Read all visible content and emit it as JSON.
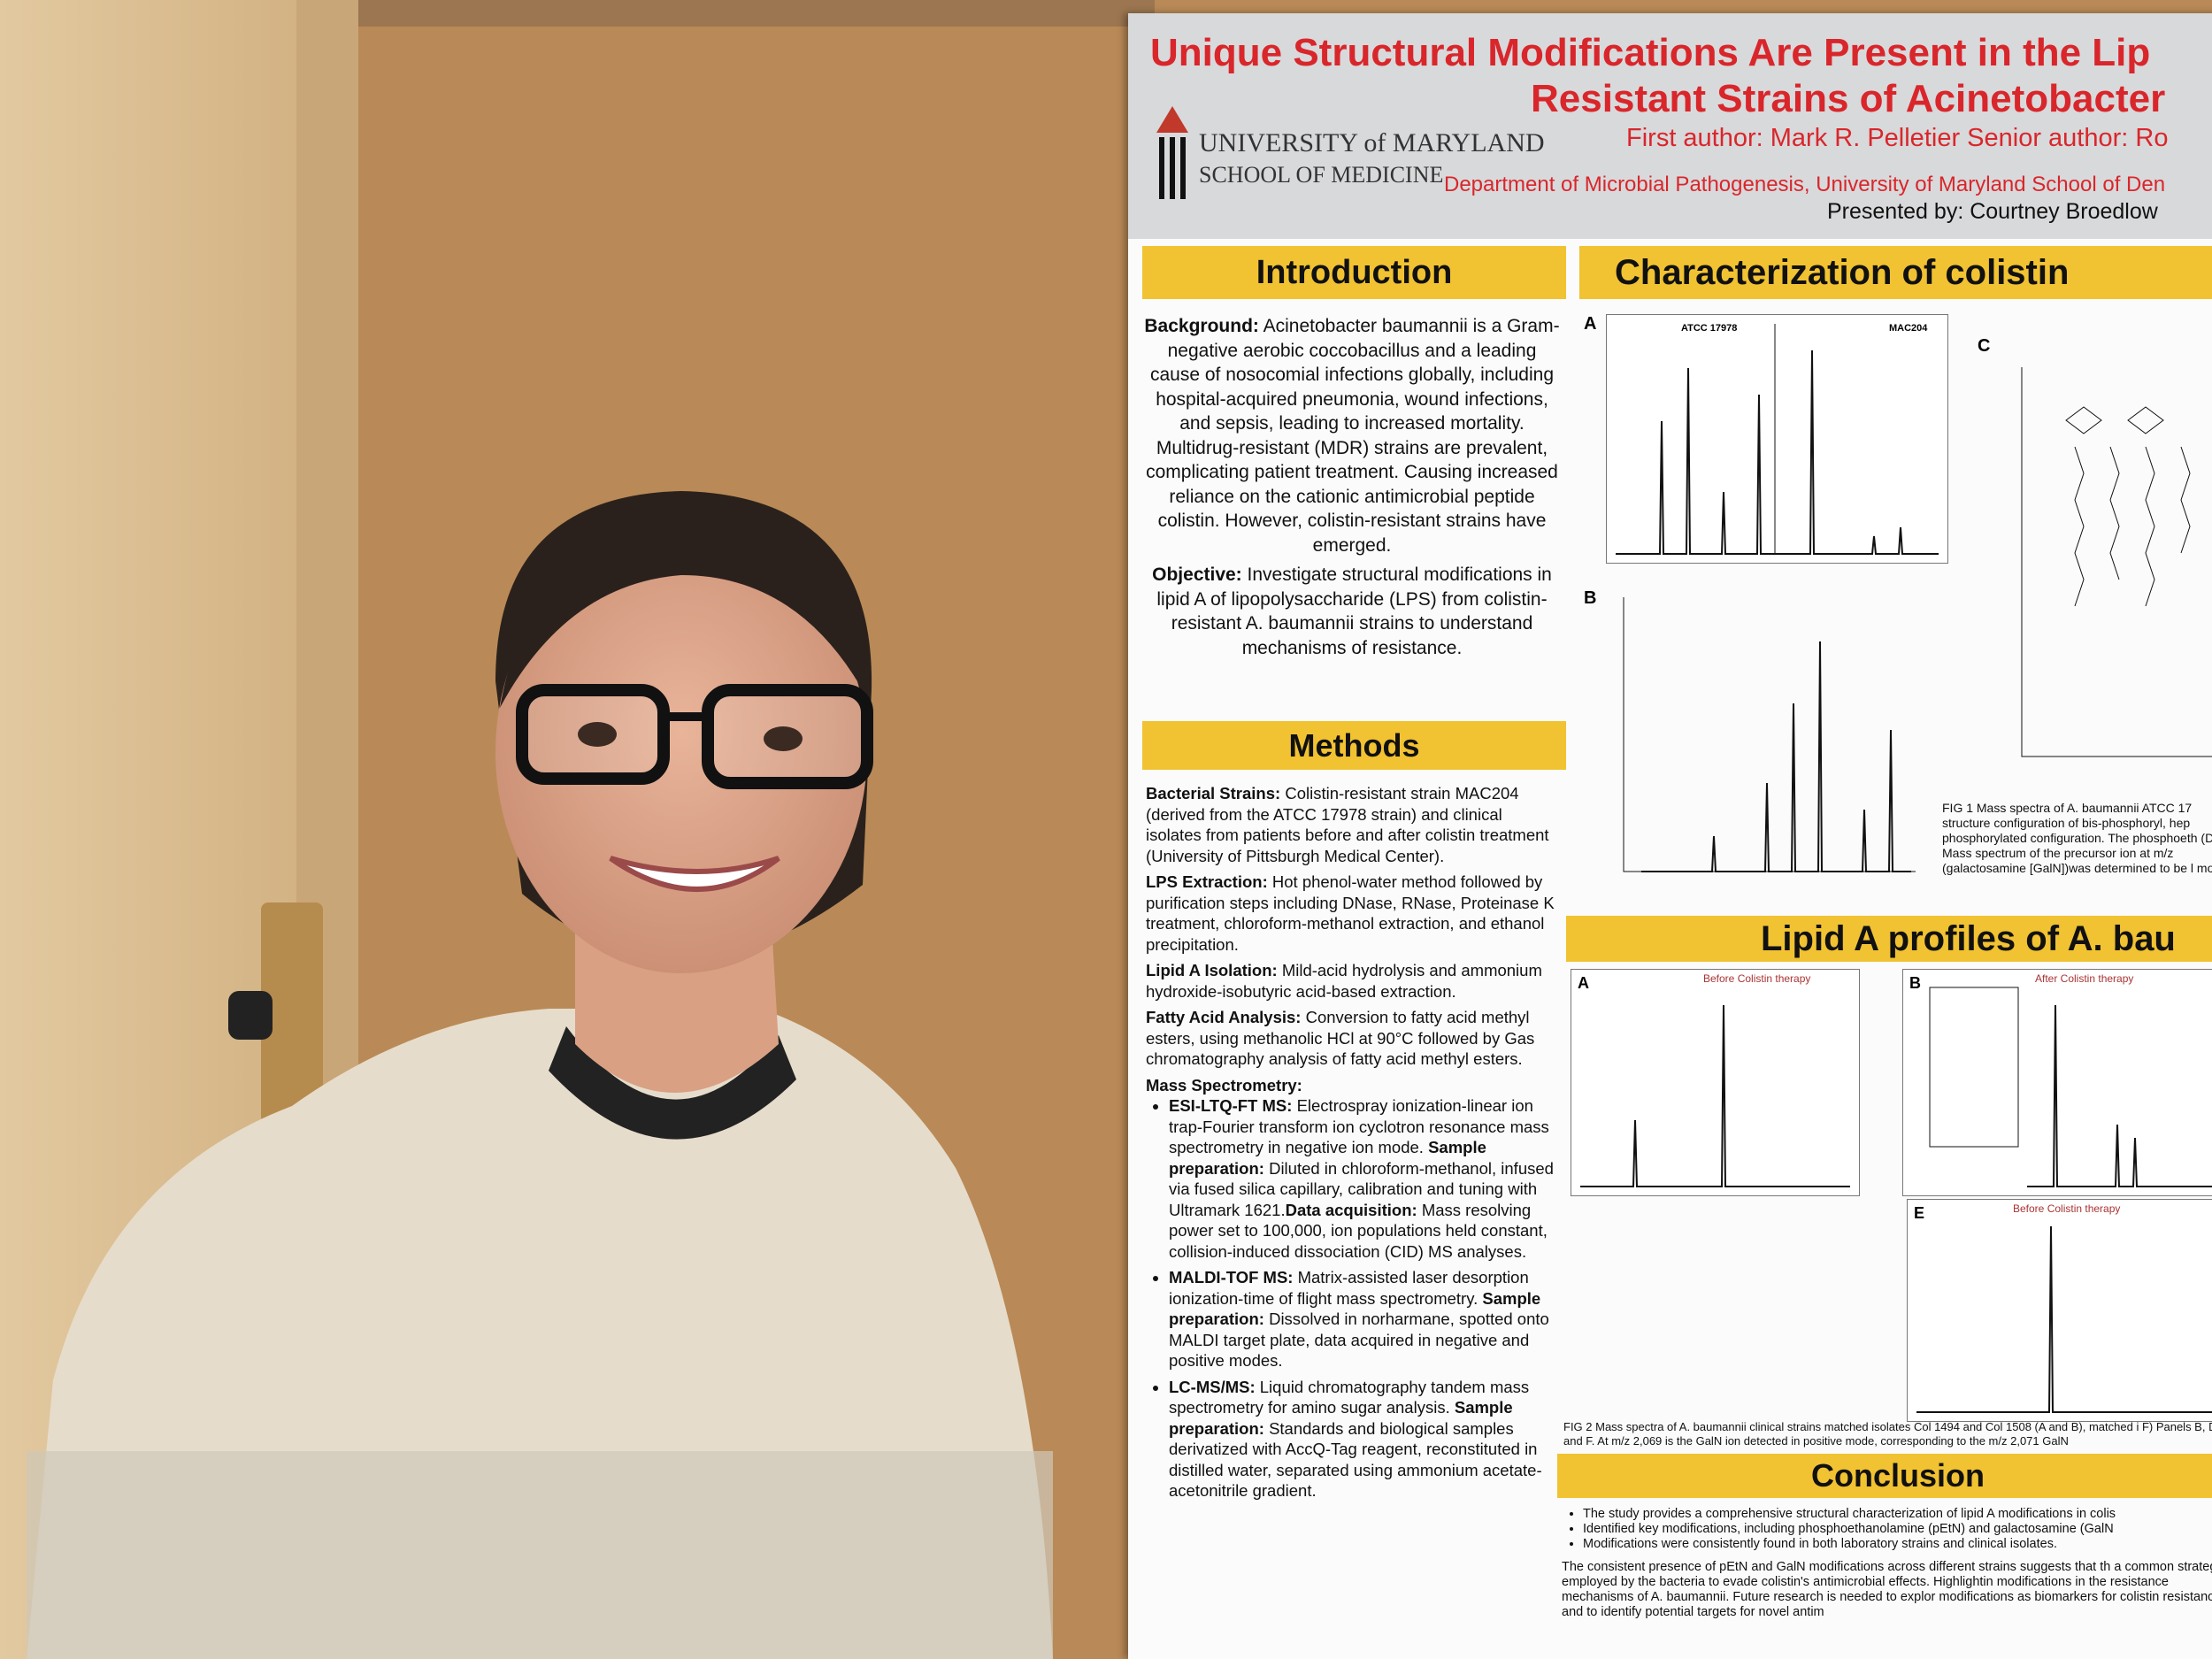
{
  "poster": {
    "title_line1": "Unique Structural Modifications Are Present in the Lip",
    "title_line2": "Resistant Strains of Acinetobacter",
    "university": "UNIVERSITY of MARYLAND",
    "school": "SCHOOL OF MEDICINE",
    "authors": "First author: Mark R. Pelletier  Senior author: Ro",
    "department": "Department of Microbial Pathogenesis, University of Maryland School of Den",
    "presenter": "Presented by: Courtney Broedlow",
    "introduction": {
      "heading": "Introduction",
      "background_label": "Background:",
      "background": "Acinetobacter baumannii is a Gram-negative aerobic coccobacillus and a leading cause of nosocomial infections globally, including hospital-acquired pneumonia, wound infections, and sepsis, leading to increased mortality. Multidrug-resistant (MDR) strains are prevalent, complicating patient treatment. Causing increased reliance on the cationic antimicrobial peptide colistin. However, colistin-resistant strains have emerged.",
      "objective_label": "Objective:",
      "objective": "Investigate structural modifications in lipid A of lipopolysaccharide (LPS) from colistin-resistant A. baumannii strains to understand mechanisms of resistance."
    },
    "methods": {
      "heading": "Methods",
      "items": [
        {
          "label": "Bacterial Strains:",
          "text": "Colistin-resistant strain MAC204 (derived from the ATCC 17978 strain) and clinical isolates from patients before and after colistin treatment (University of Pittsburgh Medical Center)."
        },
        {
          "label": "LPS Extraction:",
          "text": "Hot phenol-water method followed by purification steps including DNase, RNase, Proteinase K treatment, chloroform-methanol extraction, and ethanol precipitation."
        },
        {
          "label": "Lipid A Isolation:",
          "text": "Mild-acid hydrolysis and ammonium hydroxide-isobutyric acid-based extraction."
        },
        {
          "label": "Fatty Acid Analysis:",
          "text": "Conversion to fatty acid methyl esters, using methanolic HCl at 90°C followed by Gas chromatography analysis of fatty acid methyl esters."
        }
      ],
      "ms_heading": "Mass Spectrometry:",
      "ms_items": [
        {
          "label": "ESI-LTQ-FT MS:",
          "text": "Electrospray ionization-linear ion trap-Fourier transform ion cyclotron resonance mass spectrometry in negative ion mode.",
          "label2": "Sample preparation:",
          "text2": "Diluted in chloroform-methanol, infused via fused silica capillary, calibration and tuning with Ultramark 1621.",
          "label3": "Data acquisition:",
          "text3": "Mass resolving power set to 100,000, ion populations held constant, collision-induced dissociation (CID) MS analyses."
        },
        {
          "label": "MALDI-TOF MS:",
          "text": "Matrix-assisted laser desorption ionization-time of flight mass spectrometry.",
          "label2": "Sample preparation:",
          "text2": "Dissolved in norharmane, spotted onto MALDI target plate, data acquired in negative and positive modes."
        },
        {
          "label": "LC-MS/MS:",
          "text": "Liquid chromatography tandem mass spectrometry for amino sugar analysis.",
          "label2": "Sample preparation:",
          "text2": "Standards and biological samples derivatized with AccQ-Tag reagent, reconstituted in distilled water, separated using ammonium acetate-acetonitrile gradient."
        }
      ]
    },
    "characterization": {
      "heading": "Characterization of colistin",
      "panels": [
        "A",
        "B",
        "C"
      ],
      "strain_a": "ATCC 17978",
      "strain_b": "MAC204",
      "caption": "FIG 1 Mass spectra of A. baumannii ATCC 17 structure configuration of bis-phosphoryl, hep phosphorylated configuration. The phosphoeth (D) Mass spectrum of the precursor ion at m/z (galactosamine [GalN])was determined to be l mode."
    },
    "lipid_a": {
      "heading": "Lipid A profiles of A. bau",
      "before": "Before Colistin therapy",
      "after": "After Colistin therapy",
      "panels": [
        "A",
        "B",
        "E"
      ],
      "caption": "FIG 2 Mass spectra of A. baumannii clinical strains matched isolates Col 1494 and Col 1508 (A and B), matched i F) Panels B, D, and F. At m/z 2,069 is the GalN ion detected in positive mode, corresponding to the m/z 2,071 GalN"
    },
    "conclusion": {
      "heading": "Conclusion",
      "bullets": [
        "The study provides a comprehensive structural characterization of lipid A modifications in colis",
        "Identified key modifications, including phosphoethanolamine (pEtN) and galactosamine (GalN",
        "Modifications were consistently found in both laboratory strains and clinical isolates."
      ],
      "text": "The consistent presence of pEtN and GalN modifications across different strains suggests that th a common strategy employed by the bacteria to evade colistin's antimicrobial effects. Highlightin modifications in the resistance mechanisms of A. baumannii. Future research is needed to explor modifications as biomarkers for colistin resistance and to identify potential targets for novel antim"
    }
  }
}
